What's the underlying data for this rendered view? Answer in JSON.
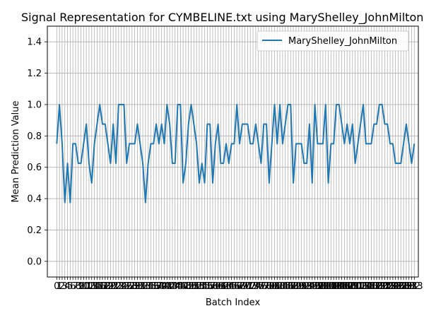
{
  "chart_data": {
    "type": "line",
    "title": "Signal Representation for CYMBELINE.txt using MaryShelley_JohnMilton",
    "xlabel": "Batch Index",
    "ylabel": "Mean Prediction Value",
    "xlim": [
      -3.5,
      134.5
    ],
    "ylim": [
      -0.1,
      1.5
    ],
    "yticks": [
      0.0,
      0.2,
      0.4,
      0.6,
      0.8,
      1.0,
      1.2,
      1.4
    ],
    "ytick_labels": [
      "0.0",
      "0.2",
      "0.4",
      "0.6",
      "0.8",
      "1.0",
      "1.2",
      "1.4"
    ],
    "grid": true,
    "legend": "upper-right",
    "series": [
      {
        "name": "MaryShelley_JohnMilton",
        "color": "#1f77b4",
        "values": [
          0.75,
          1.0,
          0.75,
          0.375,
          0.625,
          0.375,
          0.75,
          0.75,
          0.625,
          0.625,
          0.75,
          0.875,
          0.625,
          0.5,
          0.75,
          0.875,
          1.0,
          0.875,
          0.875,
          0.75,
          0.625,
          0.875,
          0.625,
          1.0,
          1.0,
          1.0,
          0.625,
          0.75,
          0.75,
          0.75,
          0.875,
          0.75,
          0.625,
          0.375,
          0.625,
          0.75,
          0.75,
          0.875,
          0.75,
          0.875,
          0.75,
          1.0,
          0.875,
          0.625,
          0.625,
          1.0,
          1.0,
          0.5,
          0.625,
          0.875,
          1.0,
          0.875,
          0.75,
          0.5,
          0.625,
          0.5,
          0.875,
          0.875,
          0.5,
          0.75,
          0.875,
          0.625,
          0.625,
          0.75,
          0.625,
          0.75,
          0.75,
          1.0,
          0.75,
          0.875,
          0.875,
          0.875,
          0.75,
          0.75,
          0.875,
          0.75,
          0.625,
          0.875,
          0.875,
          0.5,
          0.75,
          1.0,
          0.75,
          1.0,
          0.75,
          0.875,
          1.0,
          1.0,
          0.5,
          0.75,
          0.75,
          0.75,
          0.625,
          0.625,
          0.875,
          0.5,
          1.0,
          0.75,
          0.75,
          0.75,
          1.0,
          0.5,
          0.75,
          0.75,
          1.0,
          1.0,
          0.875,
          0.75,
          0.875,
          0.75,
          0.875,
          0.625,
          0.75,
          0.875,
          1.0,
          0.75,
          0.75,
          0.75,
          0.875,
          0.875,
          1.0,
          1.0,
          0.875,
          0.875,
          0.75,
          0.75,
          0.625,
          0.625,
          0.625,
          0.75,
          0.875,
          0.75,
          0.625,
          0.75
        ]
      }
    ]
  }
}
